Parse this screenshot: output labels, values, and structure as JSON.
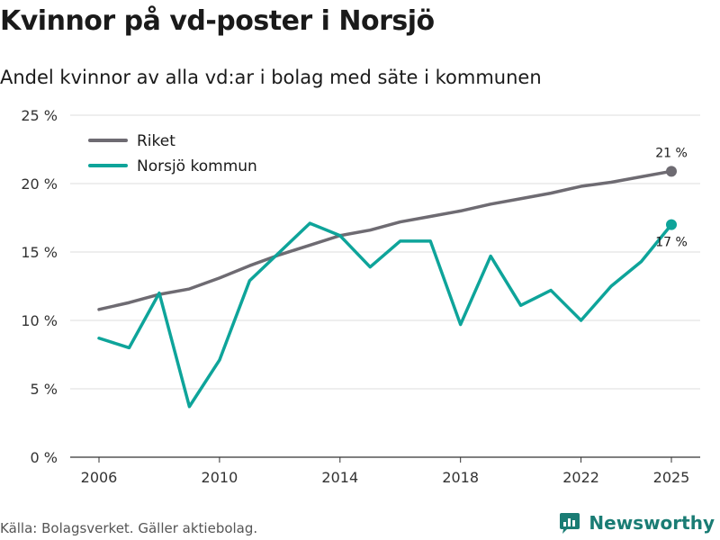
{
  "title": "Kvinnor på vd-poster i Norsjö",
  "subtitle": "Andel kvinnor av alla vd:ar i bolag med säte i kommunen",
  "source": "Källa: Bolagsverket. Gäller aktiebolag.",
  "brand": {
    "name": "Newsworthy",
    "icon": "newsworthy-logo-icon"
  },
  "chart_data": {
    "type": "line",
    "x": [
      2006,
      2007,
      2008,
      2009,
      2010,
      2011,
      2012,
      2013,
      2014,
      2015,
      2016,
      2017,
      2018,
      2019,
      2020,
      2021,
      2022,
      2023,
      2024,
      2025
    ],
    "series": [
      {
        "name": "Riket",
        "color": "#6e6b72",
        "values": [
          10.8,
          11.3,
          11.9,
          12.3,
          13.1,
          14.0,
          14.8,
          15.5,
          16.2,
          16.6,
          17.2,
          17.6,
          18.0,
          18.5,
          18.9,
          19.3,
          19.8,
          20.1,
          20.5,
          20.9
        ],
        "end_label": "21 %"
      },
      {
        "name": "Norsjö kommun",
        "color": "#0ea49a",
        "values": [
          8.7,
          8.0,
          12.0,
          3.7,
          7.1,
          12.9,
          15.0,
          17.1,
          16.2,
          13.9,
          15.8,
          15.8,
          9.7,
          14.7,
          11.1,
          12.2,
          10.0,
          12.5,
          14.3,
          17.0
        ],
        "end_label": "17 %"
      }
    ],
    "x_ticks": [
      2006,
      2010,
      2014,
      2018,
      2022,
      2025
    ],
    "x_tick_labels": [
      "2006",
      "2010",
      "2014",
      "2018",
      "2022",
      "2025"
    ],
    "y_ticks": [
      0,
      5,
      10,
      15,
      20,
      25
    ],
    "y_tick_labels": [
      "0 %",
      "5 %",
      "10 %",
      "15 %",
      "20 %",
      "25 %"
    ],
    "ylim": [
      0,
      25
    ],
    "xlim": [
      2006,
      2025
    ],
    "grid": true,
    "legend_position": "top-left"
  }
}
